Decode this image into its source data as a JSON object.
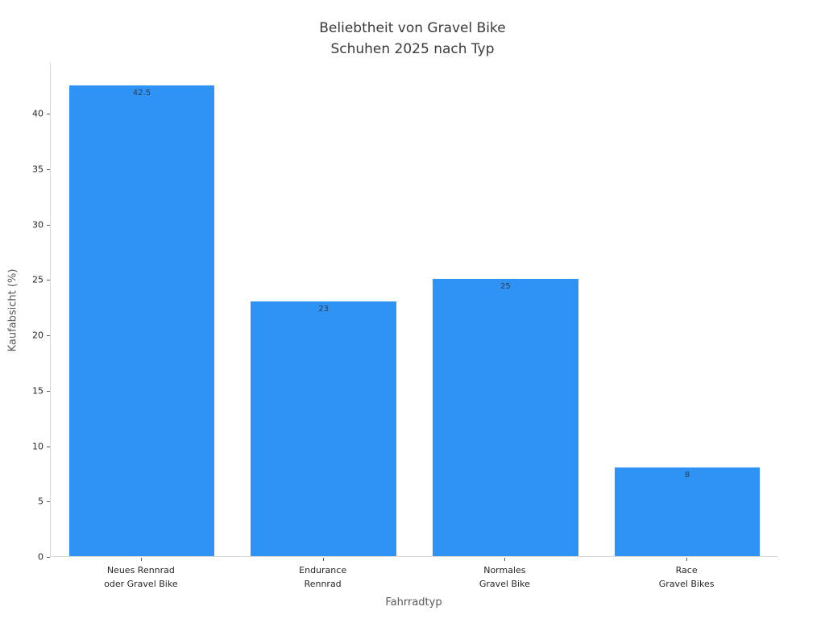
{
  "chart_data": {
    "type": "bar",
    "title": "Beliebtheit von Gravel Bike Schuhen 2025 nach Typ",
    "title_lines": [
      "Beliebtheit von Gravel Bike",
      "Schuhen 2025 nach Typ"
    ],
    "categories": [
      "Neues Rennrad oder Gravel Bike",
      "Endurance Rennrad",
      "Normales Gravel Bike",
      "Race Gravel Bikes"
    ],
    "category_lines": [
      [
        "Neues Rennrad",
        "oder Gravel Bike"
      ],
      [
        "Endurance",
        "Rennrad"
      ],
      [
        "Normales",
        "Gravel Bike"
      ],
      [
        "Race",
        "Gravel Bikes"
      ]
    ],
    "values": [
      42.5,
      23,
      25,
      8
    ],
    "value_labels": [
      "42.5",
      "23",
      "25",
      "8"
    ],
    "xlabel": "Fahrradtyp",
    "ylabel": "Kaufabsicht (%)",
    "ylim": [
      0,
      44.6
    ],
    "yticks": [
      0,
      5,
      10,
      15,
      20,
      25,
      30,
      35,
      40
    ],
    "grid": false,
    "legend": "none",
    "bar_color": "#2f92f5",
    "spine_color": "#d9d9d9",
    "tick_color": "#5a5a5a",
    "title_color": "#3a3a3a",
    "tick_label_color": "#262626",
    "axis_label_color": "#595959",
    "value_label_color": "#2e3f50"
  }
}
